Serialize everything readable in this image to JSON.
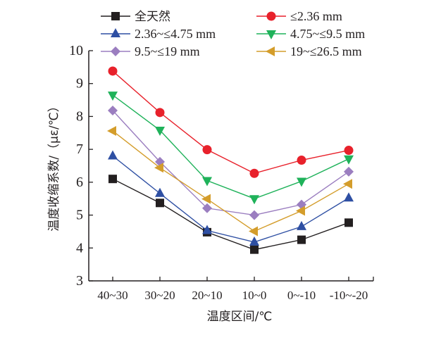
{
  "chart_data": {
    "type": "line",
    "title": "",
    "xlabel": "温度区间/℃",
    "ylabel": "温度收缩系数/（με/℃）",
    "categories": [
      "40~30",
      "30~20",
      "20~10",
      "10~0",
      "0~-10",
      "-10~-20"
    ],
    "ylim": [
      3,
      10
    ],
    "yticks": [
      3,
      4,
      5,
      6,
      7,
      8,
      9,
      10
    ],
    "grid": false,
    "legend_position": "top",
    "series": [
      {
        "name": "全天然",
        "color": "#231f20",
        "marker": "square",
        "values": [
          6.1,
          5.37,
          4.48,
          3.95,
          4.25,
          4.77
        ]
      },
      {
        "name": "≤2.36 mm",
        "color": "#e8212b",
        "marker": "circle",
        "values": [
          9.38,
          8.12,
          6.99,
          6.27,
          6.67,
          6.97
        ]
      },
      {
        "name": "2.36~≤4.75 mm",
        "color": "#2e4fa3",
        "marker": "triangle-up",
        "values": [
          6.8,
          5.66,
          4.53,
          4.18,
          4.65,
          5.52
        ]
      },
      {
        "name": "4.75~≤9.5 mm",
        "color": "#1fb25a",
        "marker": "triangle-down",
        "values": [
          8.65,
          7.58,
          6.05,
          5.5,
          6.03,
          6.71
        ]
      },
      {
        "name": "9.5~≤19 mm",
        "color": "#9b7ec0",
        "marker": "diamond",
        "values": [
          8.18,
          6.62,
          5.21,
          5.0,
          5.32,
          6.32
        ]
      },
      {
        "name": "19~≤26.5 mm",
        "color": "#d49d2b",
        "marker": "triangle-left",
        "values": [
          7.56,
          6.44,
          5.49,
          4.51,
          5.13,
          5.95
        ]
      }
    ]
  }
}
